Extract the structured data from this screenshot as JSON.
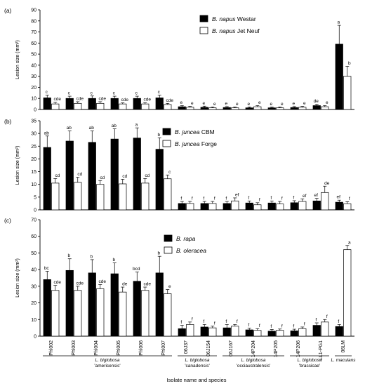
{
  "x_axis_title": "Isolate name and species",
  "isolates": [
    "Phl002",
    "Phl003",
    "Phl004",
    "Phl005",
    "Phl006",
    "Phl007",
    "06J37",
    "06J154",
    "06J167",
    "14P204",
    "14P205",
    "14P206",
    "LL1-PG1",
    "06LM"
  ],
  "species_groups": [
    {
      "lines": [
        "L. biglobosa",
        "'americensis'"
      ],
      "italic_prefix": "L. biglobosa",
      "from": 0,
      "to": 5
    },
    {
      "lines": [
        "L. biglobosa",
        "'canadensis'"
      ],
      "italic_prefix": "L. biglobosa",
      "from": 6,
      "to": 7
    },
    {
      "lines": [
        "L. biglobosa",
        "'occiaustralensis'"
      ],
      "italic_prefix": "L. biglobosa",
      "from": 8,
      "to": 10
    },
    {
      "lines": [
        "L. biglobosa",
        "'brassicae'"
      ],
      "italic_prefix": "L. biglobosa",
      "from": 11,
      "to": 12
    },
    {
      "lines": [
        "L. maculans"
      ],
      "italic_prefix": "L. maculans",
      "from": 13,
      "to": 13
    }
  ],
  "colors": {
    "series_fill": [
      "#000000",
      "#ffffff"
    ],
    "stroke": "#000000"
  },
  "chart_data": [
    {
      "type": "bar",
      "panel_label": "(a)",
      "ylabel": "Lesion size (mm²)",
      "ylim": [
        0,
        90
      ],
      "yticks": [
        0,
        10,
        20,
        30,
        40,
        50,
        60,
        70,
        80,
        90
      ],
      "legend_position": "top-right",
      "categories": [
        "Phl002",
        "Phl003",
        "Phl004",
        "Phl005",
        "Phl006",
        "Phl007",
        "06J37",
        "06J154",
        "06J167",
        "14P204",
        "14P205",
        "14P206",
        "LL1-PG1",
        "06LM"
      ],
      "series": [
        {
          "name": "B. napus Westar",
          "italic": "B. napus",
          "rest": " Westar",
          "values": [
            10.5,
            10,
            10,
            10,
            10,
            10.5,
            2.5,
            2,
            1.8,
            1.5,
            1.5,
            1.8,
            3.5,
            59
          ],
          "errors": [
            2.5,
            2,
            2.2,
            2,
            2,
            2.5,
            1,
            1,
            0.8,
            0.8,
            0.8,
            0.8,
            1.2,
            17
          ],
          "labels": [
            "c",
            "c",
            "c",
            "c",
            "c",
            "c",
            "e",
            "e",
            "e",
            "e",
            "e",
            "e",
            "de",
            "a"
          ]
        },
        {
          "name": "B. napus Jet Neuf",
          "italic": "B. napus",
          "rest": " Jet Neuf",
          "values": [
            5,
            5.5,
            5.5,
            5,
            5,
            4.5,
            2,
            1.5,
            1.5,
            2.5,
            1.5,
            2,
            2.5,
            30
          ],
          "errors": [
            1.5,
            1.5,
            1.5,
            1,
            1.2,
            1,
            0.8,
            0.8,
            0.8,
            1,
            0.8,
            0.8,
            1,
            9
          ],
          "labels": [
            "cde",
            "cde",
            "cde",
            "cde",
            "cde",
            "cde",
            "e",
            "e",
            "e",
            "e",
            "e",
            "e",
            "e",
            "b"
          ]
        }
      ]
    },
    {
      "type": "bar",
      "panel_label": "(b)",
      "ylabel": "Lesion size (mm²)",
      "ylim": [
        0,
        35
      ],
      "yticks": [
        0,
        5,
        10,
        15,
        20,
        25,
        30,
        35
      ],
      "legend_position": "top-center",
      "categories": [
        "Phl002",
        "Phl003",
        "Phl004",
        "Phl005",
        "Phl006",
        "Phl007",
        "06J37",
        "06J154",
        "06J167",
        "14P204",
        "14P205",
        "14P206",
        "LL1-PG1",
        "06LM"
      ],
      "series": [
        {
          "name": "B. juncea CBM",
          "italic": "B. juncea",
          "rest": " CBM",
          "values": [
            24.5,
            27,
            26.5,
            27.8,
            28.2,
            23.8,
            2.5,
            2.5,
            2.5,
            2.7,
            2.7,
            2.8,
            3.5,
            3
          ],
          "errors": [
            4.5,
            4,
            4.5,
            4,
            4,
            4.5,
            0.8,
            0.8,
            0.8,
            0.8,
            0.8,
            0.8,
            1,
            0.8
          ],
          "labels": [
            "ab",
            "ab",
            "ab",
            "ab",
            "a",
            "b",
            "f",
            "f",
            "f",
            "f",
            "f",
            "f",
            "ef",
            "ef"
          ]
        },
        {
          "name": "B. juncea Forge",
          "italic": "B. juncea",
          "rest": " Forge",
          "values": [
            10.5,
            10.8,
            10,
            10.2,
            10.5,
            12.2,
            2.5,
            2.5,
            3.5,
            2,
            2.3,
            3.3,
            6.8,
            2.4
          ],
          "errors": [
            1.8,
            2,
            1.5,
            1.8,
            1.8,
            1.5,
            0.8,
            0.8,
            1.2,
            0.8,
            1,
            1,
            2.5,
            0.8
          ],
          "labels": [
            "cd",
            "cd",
            "cd",
            "cd",
            "cd",
            "c",
            "f",
            "f",
            "ef",
            "f",
            "f",
            "ef",
            "de",
            "f"
          ]
        }
      ]
    },
    {
      "type": "bar",
      "panel_label": "(c)",
      "ylabel": "Lesion size (mm²)",
      "ylim": [
        0,
        70
      ],
      "yticks": [
        0,
        10,
        20,
        30,
        40,
        50,
        60,
        70
      ],
      "legend_position": "top-left",
      "categories": [
        "Phl002",
        "Phl003",
        "Phl004",
        "Phl005",
        "Phl006",
        "Phl007",
        "06J37",
        "06J154",
        "06J167",
        "14P204",
        "14P205",
        "14P206",
        "LL1-PG1",
        "06LM"
      ],
      "series": [
        {
          "name": "B. rapa",
          "italic": "B. rapa",
          "rest": "",
          "values": [
            34,
            39.5,
            38,
            37.5,
            33,
            38,
            4.5,
            5.5,
            5,
            3.8,
            3,
            3.2,
            6.5,
            5.8
          ],
          "errors": [
            5,
            7,
            8,
            6.5,
            5.5,
            10,
            2,
            1.5,
            2,
            1,
            1,
            1,
            1.5,
            1.2
          ],
          "labels": [
            "bc",
            "b",
            "b",
            "b",
            "bcd",
            "b",
            "f",
            "f",
            "f",
            "f",
            "f",
            "f",
            "f",
            "f"
          ]
        },
        {
          "name": "B. oleracea",
          "italic": "B. oleracea",
          "rest": "",
          "values": [
            27.5,
            27.5,
            28.5,
            26.5,
            27.5,
            25.5,
            7,
            5,
            6,
            3.5,
            3.5,
            4.5,
            8.5,
            52
          ],
          "errors": [
            3,
            2.5,
            2.5,
            3,
            2,
            2.5,
            1.5,
            1,
            1,
            1,
            0.8,
            1,
            1.5,
            2.5
          ],
          "labels": [
            "cde",
            "cde",
            "cde",
            "de",
            "cde",
            "e",
            "f",
            "f",
            "f",
            "f",
            "f",
            "f",
            "f",
            "a"
          ]
        }
      ]
    }
  ]
}
